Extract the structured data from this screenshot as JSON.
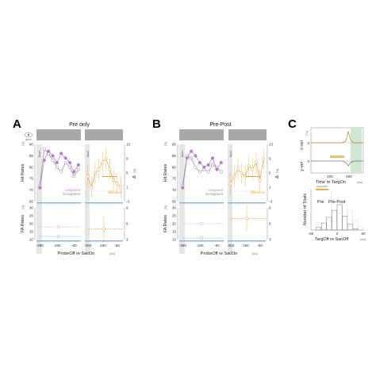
{
  "panels": {
    "A": {
      "letter": "A",
      "title": "Pre only",
      "xlabel": "ProbeOff re SacOn",
      "xunit": "[ms]"
    },
    "B": {
      "letter": "B",
      "title": "Pre-Post",
      "xlabel": "ProbeOff re SacOn",
      "xunit": "[ms]"
    },
    "C": {
      "letter": "C"
    }
  },
  "labels": {
    "gaze": "gaze",
    "base": "Base",
    "hit_rates": "Hit Rates",
    "fa_rates": "FA Rates",
    "pct": "[%]",
    "delta": "Δ",
    "congruent": "congruent",
    "incongruent": "incongruent",
    "difference": "difference",
    "saccade": "saccade",
    "pre": "Pre",
    "pre_post": "Pre-Post",
    "xvel": "x-vel",
    "yvel": "y-vel",
    "deg_s": "[°/s]",
    "time_label": "Time re TargOn",
    "targoff_label": "TargOff re SacOff",
    "ms": "[ms]",
    "n_trials": "Number of Trials"
  },
  "colors": {
    "congruent": "#b57bc9",
    "incongruent": "#8a8a8a",
    "difference": "#e8a33a",
    "fa_pink": "#d99ab8",
    "fa_gray": "#9aa6b2",
    "fa_orange": "#e8a33a",
    "base_shade": "#e6e6e6",
    "green_shade": "#cfe6d4",
    "bar_blue": "#8fb3d9"
  },
  "chart_data": [
    {
      "type": "line",
      "panel": "A",
      "title": "Pre only",
      "x": [
        -250,
        -225,
        -200,
        -175,
        -150,
        -125,
        -100,
        -75,
        -50,
        -25
      ],
      "ylim": [
        65,
        90
      ],
      "yticks": [
        65,
        70,
        75,
        80,
        85,
        90
      ],
      "xticks": [
        -250,
        -150,
        -50
      ],
      "series": [
        {
          "name": "congruent",
          "values": [
            71,
            83,
            87,
            85,
            82,
            86,
            84,
            82,
            78,
            81
          ]
        },
        {
          "name": "incongruent",
          "values": [
            72,
            88,
            86,
            83,
            80,
            78,
            82,
            80,
            76,
            79
          ]
        },
        {
          "name": "difference",
          "values": [
            4,
            1,
            5,
            6,
            8,
            9,
            6,
            3,
            2,
            1
          ]
        }
      ],
      "difference_ylim": [
        -3,
        13
      ],
      "difference_yticks": [
        -3,
        1,
        5,
        9,
        13
      ],
      "fa_ylim": [
        10,
        30
      ],
      "fa_yticks": [
        10,
        15,
        20,
        25,
        30
      ],
      "fa": {
        "congruent": 18,
        "incongruent": 12,
        "difference": 5
      }
    },
    {
      "type": "line",
      "panel": "B",
      "title": "Pre-Post",
      "x": [
        -250,
        -225,
        -200,
        -175,
        -150,
        -125,
        -100,
        -75,
        -50,
        -25
      ],
      "ylim": [
        65,
        90
      ],
      "yticks": [
        65,
        70,
        75,
        80,
        85,
        90
      ],
      "xticks": [
        -250,
        -150,
        -50
      ],
      "series": [
        {
          "name": "congruent",
          "values": [
            71,
            84,
            87,
            85,
            82,
            80,
            81,
            84,
            79,
            82
          ]
        },
        {
          "name": "incongruent",
          "values": [
            72,
            85,
            84,
            80,
            78,
            79,
            78,
            81,
            80,
            78
          ]
        },
        {
          "name": "difference",
          "values": [
            2,
            4,
            6,
            5,
            4,
            7,
            6,
            8,
            3,
            9
          ]
        }
      ],
      "difference_ylim": [
        -3,
        13
      ],
      "difference_yticks": [
        -3,
        1,
        5,
        9,
        13
      ],
      "fa_ylim": [
        10,
        30
      ],
      "fa_yticks": [
        10,
        15,
        20,
        25,
        30
      ],
      "fa": {
        "congruent": 20,
        "incongruent": 11,
        "difference": 7
      }
    },
    {
      "type": "line",
      "panel": "C-top",
      "xlabel": "Time re TargOn",
      "xticks": [
        200,
        400
      ],
      "series": [
        {
          "name": "x-vel",
          "values": [
            0,
            0,
            0,
            5,
            30,
            12,
            0,
            0
          ]
        },
        {
          "name": "y-vel",
          "values": [
            0,
            0,
            0,
            -3,
            -8,
            -2,
            0,
            0
          ]
        }
      ]
    },
    {
      "type": "area",
      "panel": "C-bottom",
      "xlabel": "TargOff re SacOff",
      "ylabel": "Number of Trials",
      "xticks": [
        -60,
        0,
        60
      ],
      "xlim": [
        -60,
        60
      ],
      "series": [
        {
          "name": "Pre",
          "values": [
            0,
            2,
            5,
            9,
            14,
            18,
            10,
            4,
            1,
            0
          ]
        },
        {
          "name": "Pre-Post",
          "values": [
            0,
            0,
            1,
            3,
            6,
            12,
            18,
            14,
            7,
            2
          ]
        }
      ]
    }
  ]
}
